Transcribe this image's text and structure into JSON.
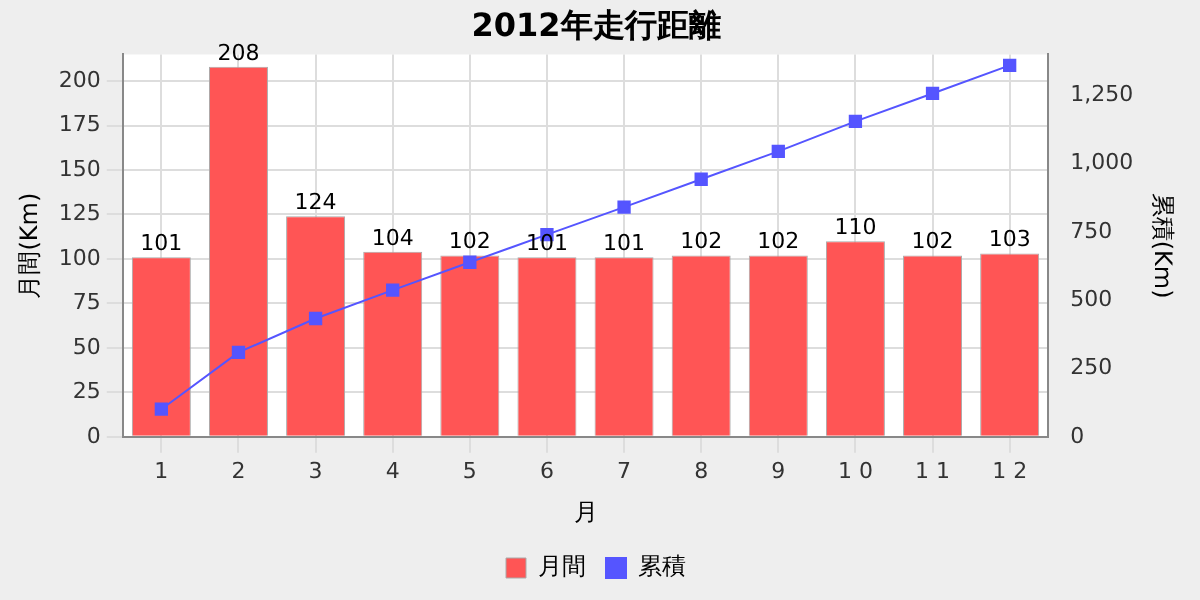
{
  "chart_data": {
    "type": "bar",
    "title": "2012年走行距離",
    "xlabel": "月",
    "ylabel": "月間(Km)",
    "y2label": "累積(Km)",
    "categories": [
      "1",
      "2",
      "3",
      "4",
      "5",
      "6",
      "7",
      "8",
      "9",
      "1 0",
      "1 1",
      "1 2"
    ],
    "series": [
      {
        "name": "月間",
        "color": "#ff5555",
        "values": [
          101,
          208,
          124,
          104,
          102,
          101,
          101,
          102,
          102,
          110,
          102,
          103
        ],
        "value_labels": [
          "101",
          "208",
          "124",
          "104",
          "102",
          "101",
          "101",
          "102",
          "102",
          "110",
          "102",
          "103"
        ]
      },
      {
        "name": "累積",
        "type": "line",
        "axis": "y2",
        "color": "#5555ff",
        "marker": "square",
        "values": [
          101,
          309,
          433,
          537,
          639,
          740,
          841,
          943,
          1045,
          1155,
          1257,
          1360
        ]
      }
    ],
    "ylim": [
      0,
      215
    ],
    "yticks": [
      0,
      25,
      50,
      75,
      100,
      125,
      150,
      175,
      200
    ],
    "y2lim": [
      0,
      1400
    ],
    "y2ticks": [
      0,
      250,
      500,
      750,
      {
        "value": 1000,
        "label": "1,000"
      },
      {
        "value": 1250,
        "label": "1,250"
      }
    ],
    "grid": true,
    "legend": "bottom"
  }
}
